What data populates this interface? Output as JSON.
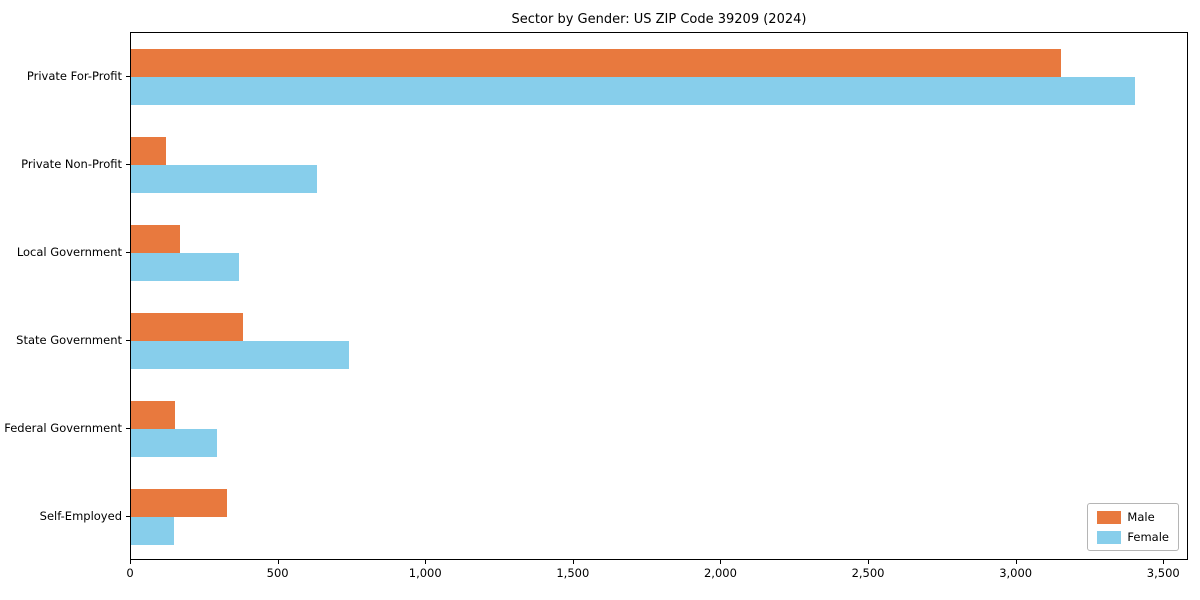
{
  "chart_data": {
    "type": "bar",
    "orientation": "horizontal",
    "title": "Sector by Gender: US ZIP Code 39209 (2024)",
    "categories": [
      "Private For-Profit",
      "Private Non-Profit",
      "Local Government",
      "State Government",
      "Federal Government",
      "Self-Employed"
    ],
    "series": [
      {
        "name": "Male",
        "color": "#e8793e",
        "values": [
          3150,
          120,
          165,
          380,
          150,
          325
        ]
      },
      {
        "name": "Female",
        "color": "#87ceeb",
        "values": [
          3400,
          630,
          365,
          740,
          290,
          145
        ]
      }
    ],
    "xlim": [
      0,
      3577
    ],
    "x_ticks": {
      "values": [
        0,
        500,
        1000,
        1500,
        2000,
        2500,
        3000,
        3500
      ],
      "labels": [
        "0",
        "500",
        "1,000",
        "1,500",
        "2,000",
        "2,500",
        "3,000",
        "3,500"
      ]
    },
    "xlabel": "",
    "ylabel": "",
    "grid": false,
    "legend": {
      "position": "lower right",
      "entries": [
        "Male",
        "Female"
      ]
    }
  }
}
